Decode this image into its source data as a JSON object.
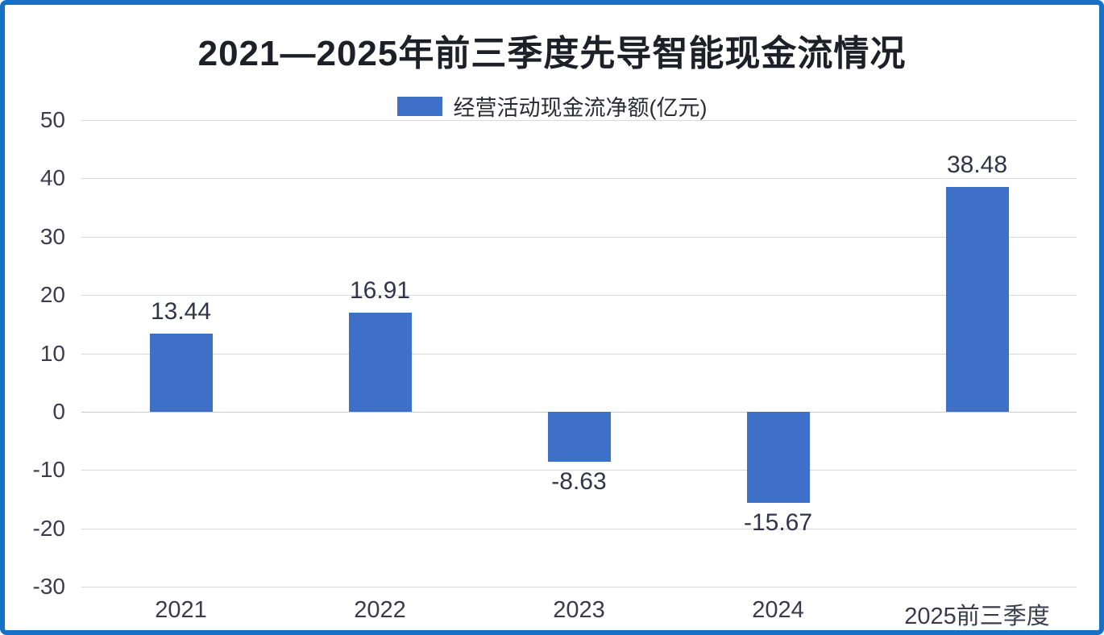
{
  "title": "2021—2025年前三季度先导智能现金流情况",
  "legend": {
    "label": "经营活动现金流净额(亿元)"
  },
  "colors": {
    "bar": "#3E70C8",
    "frame_border": "#1670C5",
    "gridline": "#D8D8DD",
    "title_text": "#1F1F27",
    "axis_text": "#3C3C4C",
    "data_label_text": "#33334A"
  },
  "chart_data": {
    "type": "bar",
    "title": "2021—2025年前三季度先导智能现金流情况",
    "series_name": "经营活动现金流净额(亿元)",
    "unit": "亿元",
    "categories": [
      "2021",
      "2022",
      "2023",
      "2024",
      "2025前三季度"
    ],
    "values": [
      13.44,
      16.91,
      -8.63,
      -15.67,
      38.48
    ],
    "data_labels": [
      "13.44",
      "16.91",
      "-8.63",
      "-15.67",
      "38.48"
    ],
    "ylim": [
      -30,
      50
    ],
    "yticks": [
      50,
      40,
      30,
      20,
      10,
      0,
      -10,
      -20,
      -30
    ],
    "grid": true,
    "legend_position": "top-center",
    "bar_color": "#3E70C8"
  }
}
